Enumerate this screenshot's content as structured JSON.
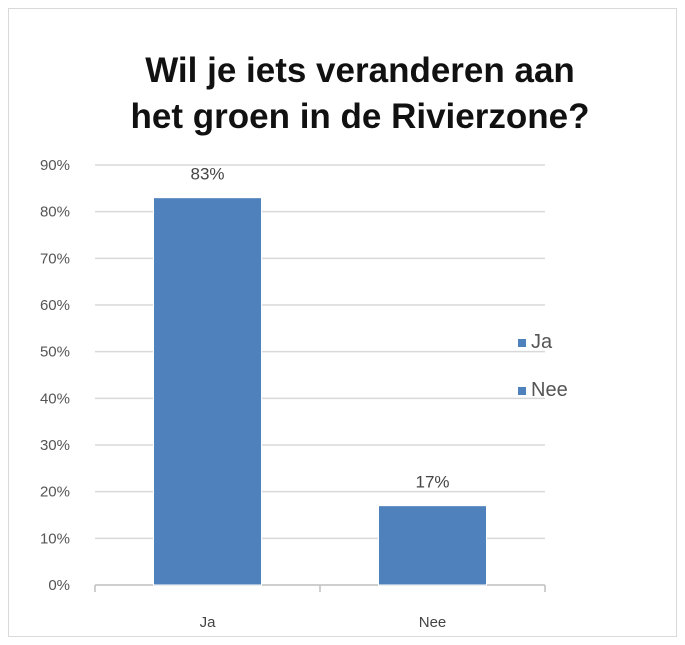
{
  "chart_data": {
    "type": "bar",
    "title": "Wil je iets veranderen aan het groen in de Rivierzone?",
    "title_lines": [
      "Wil je iets veranderen aan",
      "het groen in de Rivierzone?"
    ],
    "categories": [
      "Ja",
      "Nee"
    ],
    "values": [
      83,
      17
    ],
    "data_labels": [
      "83%",
      "17%"
    ],
    "ylim": [
      0,
      90
    ],
    "yticks": [
      0,
      10,
      20,
      30,
      40,
      50,
      60,
      70,
      80,
      90
    ],
    "ytick_labels": [
      "0%",
      "10%",
      "20%",
      "30%",
      "40%",
      "50%",
      "60%",
      "70%",
      "80%",
      "90%"
    ],
    "xlabel": "",
    "ylabel": "",
    "grid": true,
    "legend": {
      "placement": "right",
      "entries": [
        {
          "label": "Ja",
          "color": "#4f81bd"
        },
        {
          "label": "Nee",
          "color": "#4f81bd"
        }
      ]
    },
    "colors": {
      "bar": "#4f81bd",
      "grid": "#d9d9d9",
      "axis": "#bfbfbf"
    }
  }
}
